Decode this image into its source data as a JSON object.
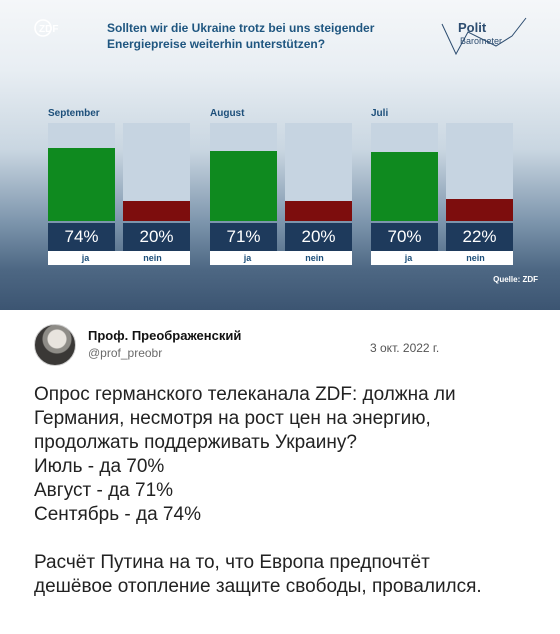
{
  "chart_image": {
    "broadcaster_logo": "ZDF",
    "title_line1": "Sollten wir die Ukraine trotz bei uns steigender",
    "title_line2": "Energiepreise weiterhin unterstützen?",
    "brand_line1": "Polit",
    "brand_line2": "Barometer",
    "source": "Quelle: ZDF",
    "colors": {
      "ja": "#0f8a1f",
      "nein": "#7d0d0d",
      "value_box": "#1e3a5c",
      "title": "#1f5680"
    }
  },
  "chart_data": {
    "type": "bar",
    "groups": [
      {
        "month": "September",
        "bars": [
          {
            "category": "ja",
            "value": 74,
            "label": "74%"
          },
          {
            "category": "nein",
            "value": 20,
            "label": "20%"
          }
        ]
      },
      {
        "month": "August",
        "bars": [
          {
            "category": "ja",
            "value": 71,
            "label": "71%"
          },
          {
            "category": "nein",
            "value": 20,
            "label": "20%"
          }
        ]
      },
      {
        "month": "Juli",
        "bars": [
          {
            "category": "ja",
            "value": 70,
            "label": "70%"
          },
          {
            "category": "nein",
            "value": 22,
            "label": "22%"
          }
        ]
      }
    ],
    "ylim": [
      0,
      100
    ]
  },
  "tweet": {
    "user_name": "Проф. Преображенский",
    "user_handle": "@prof_preobr",
    "date": "3 окт. 2022 г.",
    "lines": [
      "Опрос германского телеканала ZDF: должна ли",
      "Германия, несмотря на рост цен на энергию,",
      "продолжать поддерживать Украину?",
      "Июль - да 70%",
      "Август - да 71%",
      "Сентябрь - да 74%"
    ],
    "conclusion_lines": [
      "Расчёт Путина на то, что Европа предпочтёт",
      "дешёвое отопление защите свободы, провалился."
    ]
  }
}
